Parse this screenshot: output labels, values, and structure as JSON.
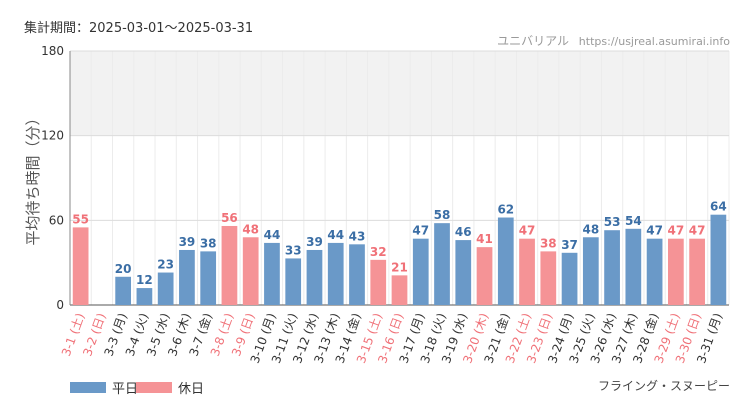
{
  "header": {
    "period": "集計期間：2025-03-01～2025-03-31",
    "site_name": "ユニバリアル",
    "site_url": "https://usjreal.asumirai.info"
  },
  "legend": [
    {
      "label": "平日",
      "color": "#6a99c8"
    },
    {
      "label": "休日",
      "color": "#f59396"
    }
  ],
  "footer": {
    "attraction": "フライング・スヌーピー"
  },
  "colors": {
    "weekday": "#6a99c8",
    "holiday": "#f59396",
    "holiday_text": "#f07178",
    "weekday_label": "#3b6ea5"
  },
  "chart_data": {
    "type": "bar",
    "ylabel": "平均待ち時間（分）",
    "ylim": [
      0,
      180
    ],
    "yticks": [
      0,
      60,
      120,
      180
    ],
    "shaded_band": [
      120,
      180
    ],
    "categories": [
      "3-1 (土)",
      "3-2 (日)",
      "3-3 (月)",
      "3-4 (火)",
      "3-5 (水)",
      "3-6 (木)",
      "3-7 (金)",
      "3-8 (土)",
      "3-9 (日)",
      "3-10 (月)",
      "3-11 (火)",
      "3-12 (水)",
      "3-13 (木)",
      "3-14 (金)",
      "3-15 (土)",
      "3-16 (日)",
      "3-17 (月)",
      "3-18 (火)",
      "3-19 (水)",
      "3-20 (木)",
      "3-21 (金)",
      "3-22 (土)",
      "3-23 (日)",
      "3-24 (月)",
      "3-25 (火)",
      "3-26 (水)",
      "3-27 (木)",
      "3-28 (金)",
      "3-29 (土)",
      "3-30 (日)",
      "3-31 (月)"
    ],
    "values": [
      55,
      null,
      20,
      12,
      23,
      39,
      38,
      56,
      48,
      44,
      33,
      39,
      44,
      43,
      32,
      21,
      47,
      58,
      46,
      41,
      62,
      47,
      38,
      37,
      48,
      53,
      54,
      47,
      47,
      47,
      64
    ],
    "holiday": [
      true,
      true,
      false,
      false,
      false,
      false,
      false,
      true,
      true,
      false,
      false,
      false,
      false,
      false,
      true,
      true,
      false,
      false,
      false,
      true,
      false,
      true,
      true,
      false,
      false,
      false,
      false,
      false,
      true,
      true,
      false
    ]
  }
}
